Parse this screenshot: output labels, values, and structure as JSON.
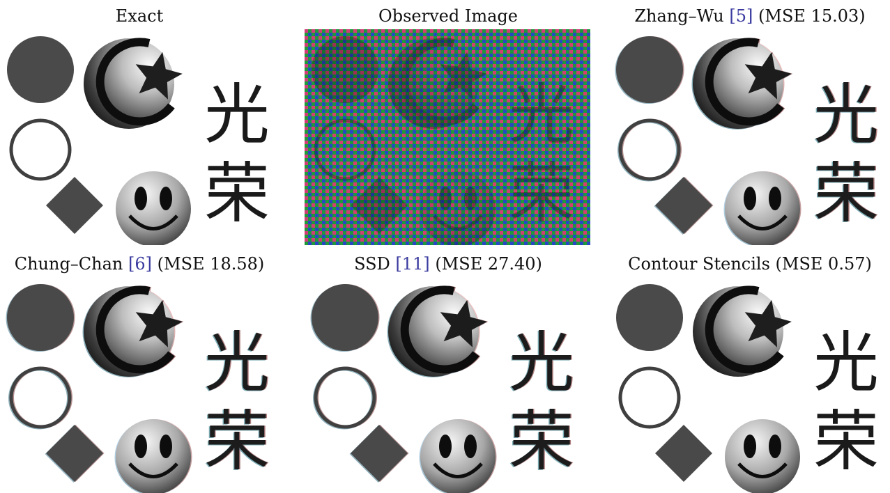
{
  "panels": [
    {
      "title": "Exact",
      "method": "",
      "ref": "",
      "mse": "",
      "variant": "exact"
    },
    {
      "title": "Observed Image",
      "method": "",
      "ref": "",
      "mse": "",
      "variant": "observed"
    },
    {
      "title": "",
      "method": "Zhang–Wu",
      "ref": "[5]",
      "mse": "(MSE 15.03)",
      "variant": "fringe-light"
    },
    {
      "title": "",
      "method": "Chung–Chan",
      "ref": "[6]",
      "mse": "(MSE 18.58)",
      "variant": "fringe"
    },
    {
      "title": "",
      "method": "SSD",
      "ref": "[11]",
      "mse": "(MSE 27.40)",
      "variant": "fringe-strong"
    },
    {
      "title": "Contour Stencils (MSE 0.57)",
      "method": "",
      "ref": "",
      "mse": "",
      "variant": "clean"
    }
  ],
  "hanzi": [
    "光",
    "荣"
  ]
}
